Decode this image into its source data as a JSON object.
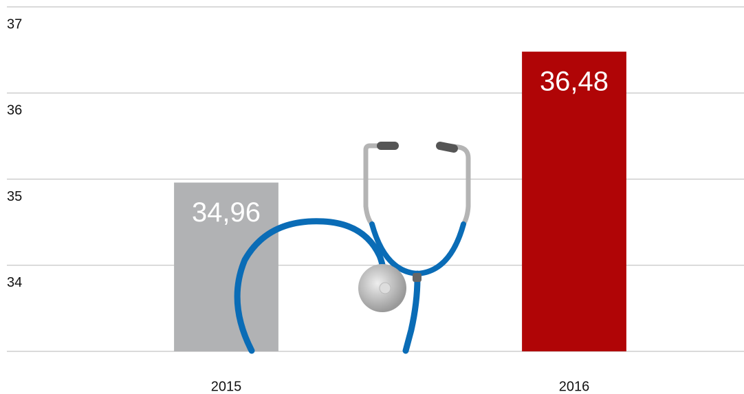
{
  "chart_data": {
    "type": "bar",
    "categories": [
      "2015",
      "2016"
    ],
    "series": [
      {
        "colors": [
          "#b1b2b4",
          "#b00506"
        ],
        "values": [
          34.96,
          36.48
        ],
        "value_labels": [
          "34,96",
          "36,48"
        ]
      }
    ],
    "ylim": [
      33,
      37
    ],
    "yticks": [
      34,
      35,
      36,
      37
    ],
    "grid": true
  }
}
